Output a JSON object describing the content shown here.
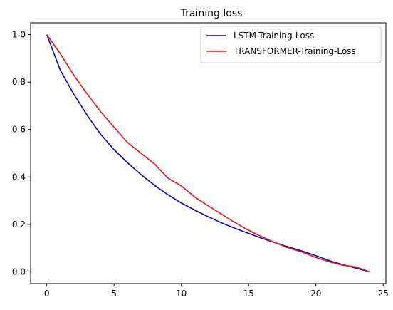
{
  "chart_data": {
    "type": "line",
    "title": "Training loss",
    "xlabel": "",
    "ylabel": "",
    "xlim": [
      -1.2,
      25.2
    ],
    "ylim": [
      -0.05,
      1.05
    ],
    "xticks": [
      0,
      5,
      10,
      15,
      20,
      25
    ],
    "yticks": [
      0.0,
      0.2,
      0.4,
      0.6,
      0.8,
      1.0
    ],
    "ytick_labels": [
      "0.0",
      "0.2",
      "0.4",
      "0.6",
      "0.8",
      "1.0"
    ],
    "grid": false,
    "legend_position": "top-right",
    "x": [
      0,
      1,
      2,
      3,
      4,
      5,
      6,
      7,
      8,
      9,
      10,
      11,
      12,
      13,
      14,
      15,
      16,
      17,
      18,
      19,
      20,
      21,
      22,
      23,
      24
    ],
    "series": [
      {
        "name": "LSTM-Training-Loss",
        "color": "#0000cc",
        "values": [
          1.0,
          0.851,
          0.75,
          0.66,
          0.58,
          0.515,
          0.46,
          0.41,
          0.365,
          0.325,
          0.29,
          0.26,
          0.232,
          0.206,
          0.183,
          0.162,
          0.141,
          0.122,
          0.104,
          0.087,
          0.068,
          0.047,
          0.03,
          0.015,
          0.0
        ]
      },
      {
        "name": "TRANSFORMER-Training-Loss",
        "color": "#ee1111",
        "values": [
          1.0,
          0.92,
          0.83,
          0.75,
          0.675,
          0.61,
          0.545,
          0.5,
          0.455,
          0.395,
          0.362,
          0.315,
          0.278,
          0.243,
          0.207,
          0.175,
          0.147,
          0.122,
          0.1,
          0.083,
          0.06,
          0.042,
          0.028,
          0.02,
          0.0
        ]
      }
    ]
  }
}
